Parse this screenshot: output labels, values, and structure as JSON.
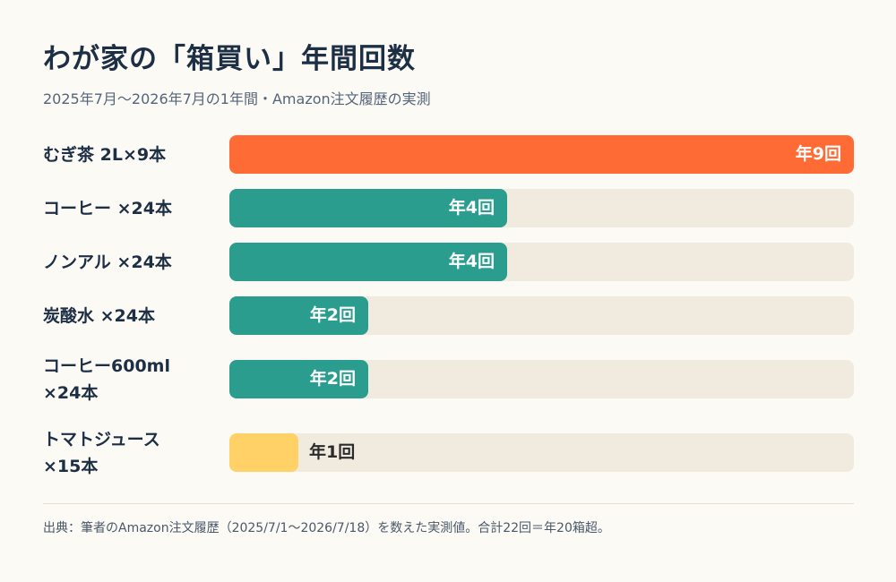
{
  "chart_data": {
    "type": "bar",
    "orientation": "horizontal",
    "title": "わが家の「箱買い」年間回数",
    "subtitle": "2025年7月〜2026年7月の1年間・Amazon注文履歴の実測",
    "categories": [
      "むぎ茶 2L×9本",
      "コーヒー ×24本",
      "ノンアル ×24本",
      "炭酸水 ×24本",
      "コーヒー600ml\n×24本",
      "トマトジュース\n×15本"
    ],
    "values": [
      9,
      4,
      4,
      2,
      2,
      1
    ],
    "value_labels": [
      "年9回",
      "年4回",
      "年4回",
      "年2回",
      "年2回",
      "年1回"
    ],
    "xlim": [
      0,
      9
    ],
    "grid": false,
    "legend": "none",
    "source": "出典：筆者のAmazon注文履歴（2025/7/1〜2026/7/18）を数えた実測値。合計22回＝年20箱超。",
    "colors": {
      "highest": "#ff6b35",
      "mid": "#2a9d8f",
      "lowest": "#ffd166",
      "track": "#f1ebdf",
      "title": "#1d2f45"
    }
  }
}
